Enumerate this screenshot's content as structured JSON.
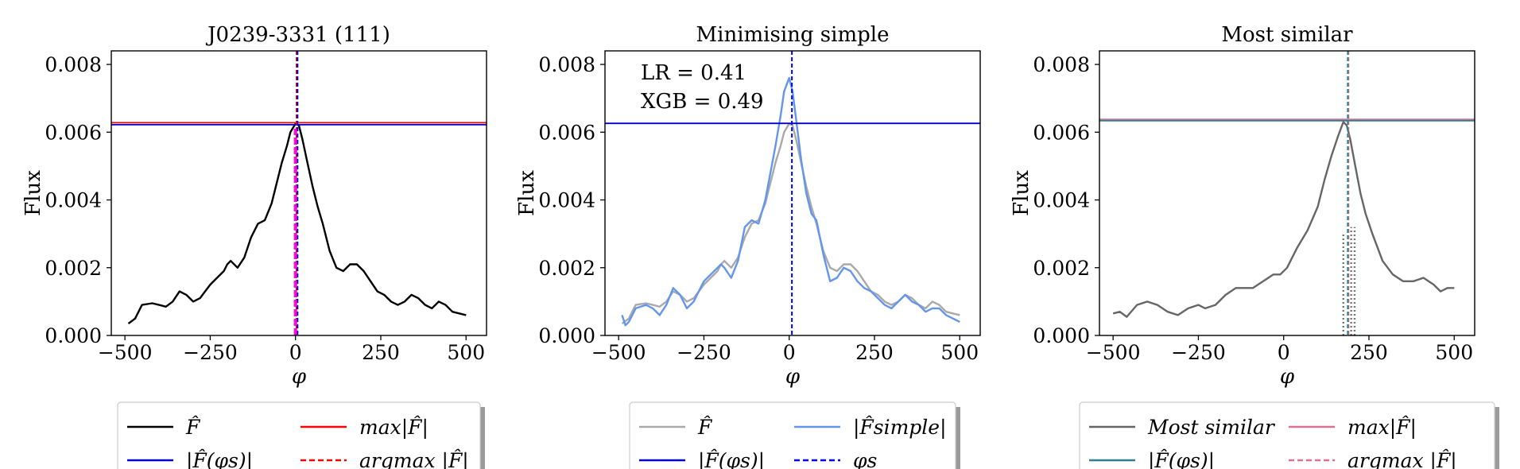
{
  "chart_data": [
    {
      "type": "line",
      "title": "J0239-3331 (111)",
      "xlabel": "φ",
      "ylabel": "Flux",
      "xlim": [
        -540,
        560
      ],
      "ylim": [
        0,
        0.0084
      ],
      "xticks": [
        -500,
        -250,
        0,
        250,
        500
      ],
      "xtick_labels": [
        "−500",
        "−250",
        "0",
        "250",
        "500"
      ],
      "yticks": [
        0,
        0.002,
        0.004,
        0.006,
        0.008
      ],
      "ytick_labels": [
        "0.000",
        "0.002",
        "0.004",
        "0.006",
        "0.008"
      ],
      "grid": false,
      "series": [
        {
          "legend": "F̂",
          "style": "line",
          "color": "#000000",
          "x": [
            -490,
            -470,
            -450,
            -420,
            -400,
            -380,
            -360,
            -340,
            -320,
            -300,
            -280,
            -250,
            -230,
            -210,
            -200,
            -190,
            -170,
            -150,
            -130,
            -110,
            -90,
            -70,
            -55,
            -40,
            -25,
            -15,
            0,
            10,
            20,
            35,
            50,
            65,
            80,
            100,
            120,
            140,
            160,
            180,
            200,
            220,
            240,
            260,
            280,
            300,
            320,
            340,
            360,
            380,
            400,
            420,
            440,
            460,
            480,
            500
          ],
          "y": [
            0.00035,
            0.0005,
            0.0009,
            0.00095,
            0.0009,
            0.00085,
            0.001,
            0.0013,
            0.0012,
            0.001,
            0.0011,
            0.0015,
            0.0017,
            0.0019,
            0.0021,
            0.0022,
            0.002,
            0.0023,
            0.0029,
            0.0033,
            0.0034,
            0.0039,
            0.0045,
            0.0051,
            0.0056,
            0.006,
            0.00625,
            0.0062,
            0.0058,
            0.0051,
            0.0044,
            0.0038,
            0.0033,
            0.0025,
            0.002,
            0.0019,
            0.0021,
            0.0021,
            0.0019,
            0.0016,
            0.0013,
            0.0012,
            0.001,
            0.0009,
            0.001,
            0.0012,
            0.0011,
            0.0009,
            0.0008,
            0.001,
            0.0009,
            0.0007,
            0.00065,
            0.0006
          ]
        },
        {
          "legend": "max|F̂|",
          "style": "hline",
          "color": "#ff0000",
          "y": 0.00628
        },
        {
          "legend": "|F̂(φs)|",
          "style": "hline",
          "color": "#0000cc",
          "y": 0.00622
        },
        {
          "legend": "argmax |F̂|",
          "style": "vline-dashed",
          "color": "#ff0000",
          "x": 3
        },
        {
          "legend": "",
          "style": "vline-dashed",
          "color": "#0000cc",
          "x": 6
        },
        {
          "legend": "",
          "style": "vline-band",
          "color": "#ee00cc",
          "x": 0,
          "width": 10
        }
      ],
      "legend_position": "below"
    },
    {
      "type": "line",
      "title": "Minimising simple",
      "xlabel": "φ",
      "ylabel": "Flux",
      "xlim": [
        -540,
        560
      ],
      "ylim": [
        0,
        0.0084
      ],
      "xticks": [
        -500,
        -250,
        0,
        250,
        500
      ],
      "xtick_labels": [
        "−500",
        "−250",
        "0",
        "250",
        "500"
      ],
      "yticks": [
        0,
        0.002,
        0.004,
        0.006,
        0.008
      ],
      "ytick_labels": [
        "0.000",
        "0.002",
        "0.004",
        "0.006",
        "0.008"
      ],
      "annotations": [
        "LR = 0.41",
        "XGB = 0.49"
      ],
      "grid": false,
      "series": [
        {
          "legend": "F̂",
          "style": "line",
          "color": "#a9a9a9",
          "x": [
            -490,
            -470,
            -450,
            -420,
            -400,
            -380,
            -360,
            -340,
            -320,
            -300,
            -280,
            -250,
            -230,
            -210,
            -200,
            -190,
            -170,
            -150,
            -130,
            -110,
            -90,
            -70,
            -55,
            -40,
            -25,
            -15,
            0,
            10,
            20,
            35,
            50,
            65,
            80,
            100,
            120,
            140,
            160,
            180,
            200,
            220,
            240,
            260,
            280,
            300,
            320,
            340,
            360,
            380,
            400,
            420,
            440,
            460,
            480,
            500
          ],
          "y": [
            0.00035,
            0.0005,
            0.0009,
            0.00095,
            0.0009,
            0.00085,
            0.001,
            0.0013,
            0.0012,
            0.001,
            0.0011,
            0.0015,
            0.0017,
            0.0019,
            0.0021,
            0.0022,
            0.002,
            0.0023,
            0.0029,
            0.0033,
            0.0034,
            0.0039,
            0.0045,
            0.0051,
            0.0056,
            0.006,
            0.00625,
            0.0062,
            0.0058,
            0.0051,
            0.0044,
            0.0038,
            0.0033,
            0.0025,
            0.002,
            0.0019,
            0.0021,
            0.0021,
            0.0019,
            0.0016,
            0.0013,
            0.0012,
            0.001,
            0.0009,
            0.001,
            0.0012,
            0.0011,
            0.0009,
            0.0008,
            0.001,
            0.0009,
            0.0007,
            0.00065,
            0.0006
          ]
        },
        {
          "legend": "|F̂simple|",
          "style": "line",
          "color": "#6495ed",
          "x": [
            -490,
            -480,
            -470,
            -450,
            -420,
            -400,
            -380,
            -360,
            -340,
            -320,
            -300,
            -280,
            -250,
            -230,
            -210,
            -200,
            -190,
            -170,
            -150,
            -130,
            -110,
            -90,
            -70,
            -55,
            -40,
            -25,
            -15,
            0,
            10,
            20,
            35,
            50,
            65,
            80,
            100,
            120,
            140,
            160,
            180,
            200,
            220,
            240,
            260,
            280,
            300,
            320,
            340,
            360,
            380,
            400,
            420,
            440,
            460,
            480,
            500
          ],
          "y": [
            0.0006,
            0.0003,
            0.0004,
            0.0008,
            0.0009,
            0.0008,
            0.0006,
            0.0009,
            0.0014,
            0.0012,
            0.0008,
            0.001,
            0.0016,
            0.0018,
            0.002,
            0.0021,
            0.002,
            0.0017,
            0.0022,
            0.0032,
            0.0034,
            0.0033,
            0.004,
            0.0048,
            0.0056,
            0.0065,
            0.0072,
            0.0076,
            0.0072,
            0.0064,
            0.0052,
            0.0042,
            0.0036,
            0.0034,
            0.0024,
            0.0016,
            0.0017,
            0.002,
            0.0019,
            0.0016,
            0.0014,
            0.0013,
            0.0011,
            0.0009,
            0.0008,
            0.001,
            0.0012,
            0.001,
            0.0009,
            0.0007,
            0.0008,
            0.0008,
            0.0006,
            0.0005,
            0.0004
          ]
        },
        {
          "legend": "|F̂(φs)|",
          "style": "hline",
          "color": "#0000cc",
          "y": 0.00626
        },
        {
          "legend": "φs",
          "style": "vline-dashed",
          "color": "#0000ff",
          "x": 8
        }
      ],
      "legend_position": "below"
    },
    {
      "type": "line",
      "title": "Most similar",
      "xlabel": "φ",
      "ylabel": "Flux",
      "xlim": [
        -540,
        560
      ],
      "ylim": [
        0,
        0.0084
      ],
      "xticks": [
        -500,
        -250,
        0,
        250,
        500
      ],
      "xtick_labels": [
        "−500",
        "−250",
        "0",
        "250",
        "500"
      ],
      "yticks": [
        0,
        0.002,
        0.004,
        0.006,
        0.008
      ],
      "ytick_labels": [
        "0.000",
        "0.002",
        "0.004",
        "0.006",
        "0.008"
      ],
      "grid": false,
      "series": [
        {
          "legend": "Most similar",
          "style": "line",
          "color": "#666666",
          "x": [
            -500,
            -480,
            -460,
            -430,
            -400,
            -370,
            -340,
            -310,
            -280,
            -250,
            -230,
            -200,
            -170,
            -140,
            -110,
            -90,
            -60,
            -30,
            -10,
            10,
            40,
            70,
            100,
            120,
            140,
            160,
            175,
            185,
            195,
            210,
            225,
            240,
            260,
            290,
            320,
            350,
            380,
            410,
            440,
            460,
            480,
            500
          ],
          "y": [
            0.00065,
            0.0007,
            0.00055,
            0.0009,
            0.001,
            0.0009,
            0.0007,
            0.0006,
            0.0008,
            0.0009,
            0.0008,
            0.0009,
            0.0012,
            0.0014,
            0.0014,
            0.0014,
            0.0016,
            0.0018,
            0.0018,
            0.002,
            0.0026,
            0.0031,
            0.0038,
            0.0046,
            0.0053,
            0.0059,
            0.0063,
            0.0062,
            0.0058,
            0.005,
            0.0042,
            0.0036,
            0.003,
            0.0022,
            0.0018,
            0.0016,
            0.0016,
            0.0017,
            0.0015,
            0.0013,
            0.0014,
            0.0014
          ]
        },
        {
          "legend": "max|F̂|",
          "style": "hline",
          "color": "#db7093",
          "y": 0.00638
        },
        {
          "legend": "|F̂(φs)|",
          "style": "hline",
          "color": "#2f7f8f",
          "y": 0.00634
        },
        {
          "legend": "argmax |F̂|",
          "style": "vline-dashed",
          "color": "#db7093",
          "x": 190
        },
        {
          "legend": "",
          "style": "vline-dashed",
          "color": "#2f7f8f",
          "x": 188
        },
        {
          "legend": "",
          "style": "vline-dotted-partial",
          "color": "#777777",
          "x": 175,
          "ytop": 0.003
        },
        {
          "legend": "",
          "style": "vline-dotted-partial",
          "color": "#777777",
          "x": 198,
          "ytop": 0.0032
        },
        {
          "legend": "",
          "style": "vline-dotted-partial",
          "color": "#777777",
          "x": 208,
          "ytop": 0.0032
        }
      ],
      "legend_position": "below"
    }
  ]
}
